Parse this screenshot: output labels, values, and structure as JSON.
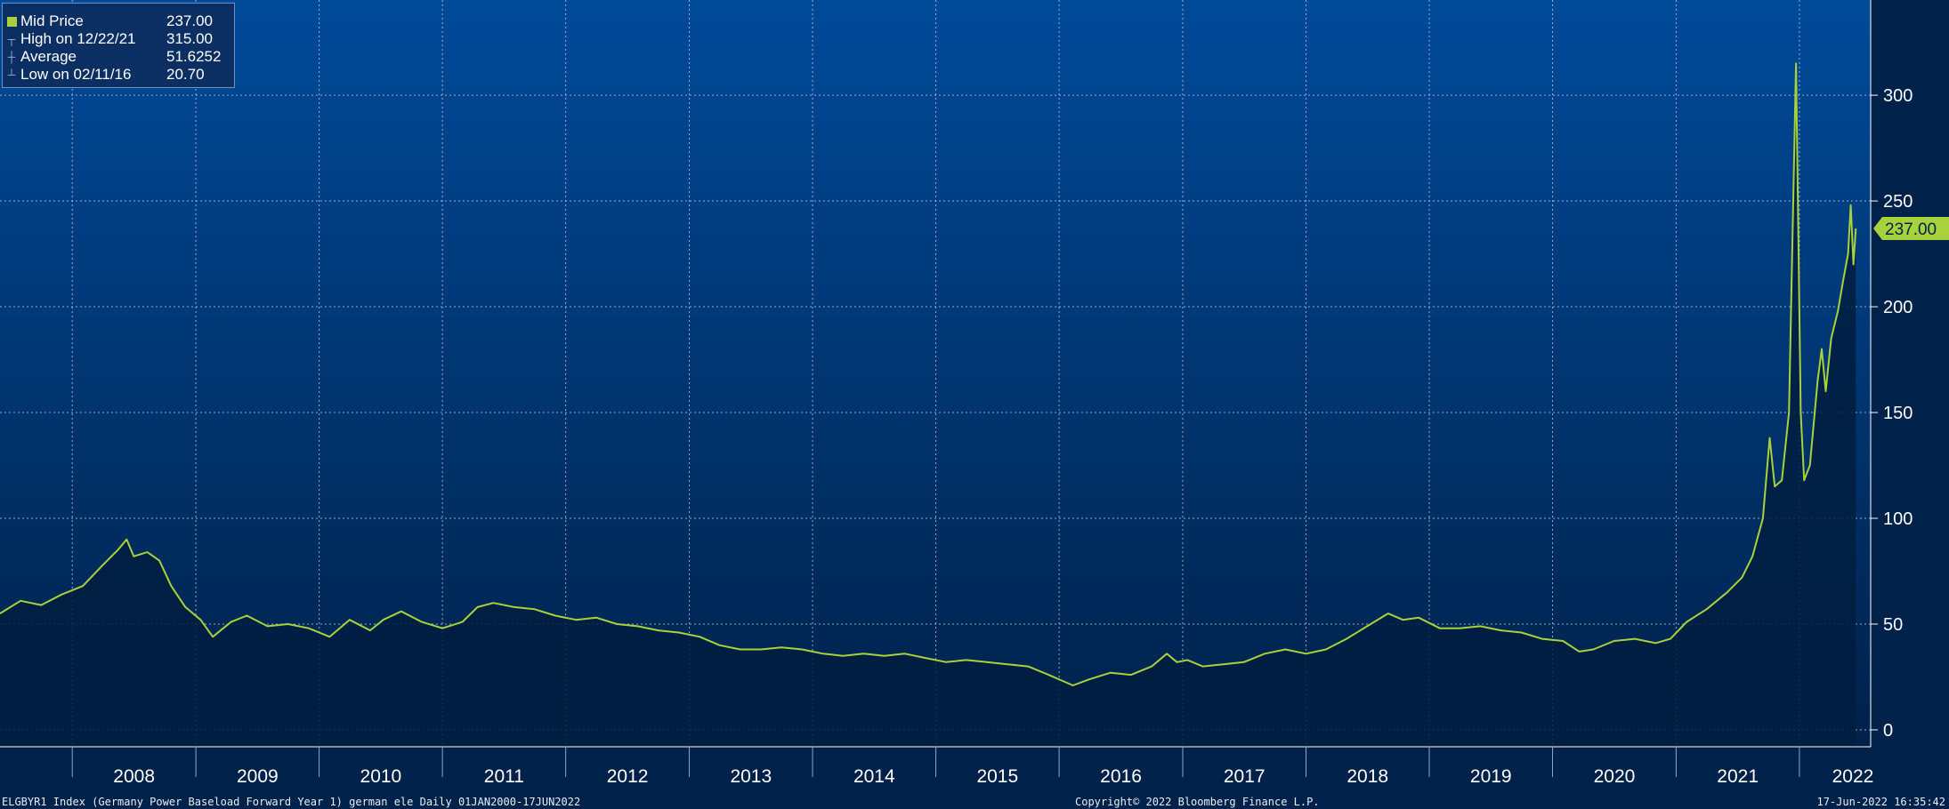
{
  "legend": {
    "rows": [
      {
        "label": "Mid Price",
        "value": "237.00",
        "icon": "square-icon"
      },
      {
        "label": "High on 12/22/21",
        "value": "315.00",
        "icon": "high-marker-icon"
      },
      {
        "label": "Average",
        "value": "51.6252",
        "icon": "average-marker-icon"
      },
      {
        "label": "Low on 02/11/16",
        "value": "20.70",
        "icon": "low-marker-icon"
      }
    ]
  },
  "footer": {
    "ticker": "ELGBYR1 Index (Germany Power Baseload Forward Year 1) german ele  Daily 01JAN2000-17JUN2022",
    "copyright": "Copyright© 2022 Bloomberg Finance L.P.",
    "timestamp": "17-Jun-2022 16:35:42"
  },
  "colors": {
    "line": "#a8d23b",
    "background_top": "#004a99",
    "background_bottom": "#00214a",
    "fill": "#001d3f"
  },
  "chart_data": {
    "type": "area",
    "title": "",
    "xlabel": "",
    "ylabel": "",
    "last_value_label": "237.00",
    "x_tick_labels": [
      "2008",
      "2009",
      "2010",
      "2011",
      "2012",
      "2013",
      "2014",
      "2015",
      "2016",
      "2017",
      "2018",
      "2019",
      "2020",
      "2021",
      "2022"
    ],
    "y_ticks": [
      0,
      50,
      100,
      150,
      200,
      250,
      300
    ],
    "xlim": [
      "2007-06-01",
      "2022-07-31"
    ],
    "ylim": [
      -8,
      345
    ],
    "grid": true,
    "legend_position": "top-left",
    "series": [
      {
        "name": "Mid Price",
        "points": [
          [
            "2007-06-01",
            55
          ],
          [
            "2007-08-01",
            61
          ],
          [
            "2007-10-01",
            59
          ],
          [
            "2007-12-01",
            64
          ],
          [
            "2008-02-01",
            68
          ],
          [
            "2008-04-01",
            78
          ],
          [
            "2008-05-15",
            85
          ],
          [
            "2008-06-10",
            90
          ],
          [
            "2008-07-01",
            82
          ],
          [
            "2008-08-10",
            84
          ],
          [
            "2008-09-15",
            80
          ],
          [
            "2008-10-20",
            68
          ],
          [
            "2008-12-01",
            58
          ],
          [
            "2009-01-15",
            52
          ],
          [
            "2009-02-20",
            44
          ],
          [
            "2009-04-15",
            51
          ],
          [
            "2009-06-01",
            54
          ],
          [
            "2009-08-01",
            49
          ],
          [
            "2009-10-01",
            50
          ],
          [
            "2009-12-01",
            48
          ],
          [
            "2010-02-01",
            44
          ],
          [
            "2010-04-01",
            52
          ],
          [
            "2010-06-01",
            47
          ],
          [
            "2010-07-10",
            52
          ],
          [
            "2010-09-01",
            56
          ],
          [
            "2010-11-01",
            51
          ],
          [
            "2011-01-01",
            48
          ],
          [
            "2011-03-01",
            51
          ],
          [
            "2011-04-15",
            58
          ],
          [
            "2011-06-01",
            60
          ],
          [
            "2011-08-01",
            58
          ],
          [
            "2011-10-01",
            57
          ],
          [
            "2011-12-01",
            54
          ],
          [
            "2012-02-01",
            52
          ],
          [
            "2012-04-01",
            53
          ],
          [
            "2012-06-01",
            50
          ],
          [
            "2012-08-01",
            49
          ],
          [
            "2012-10-01",
            47
          ],
          [
            "2012-12-01",
            46
          ],
          [
            "2013-02-01",
            44
          ],
          [
            "2013-04-01",
            40
          ],
          [
            "2013-06-01",
            38
          ],
          [
            "2013-08-01",
            38
          ],
          [
            "2013-10-01",
            39
          ],
          [
            "2013-12-01",
            38
          ],
          [
            "2014-02-01",
            36
          ],
          [
            "2014-04-01",
            35
          ],
          [
            "2014-06-01",
            36
          ],
          [
            "2014-08-01",
            35
          ],
          [
            "2014-10-01",
            36
          ],
          [
            "2014-12-01",
            34
          ],
          [
            "2015-02-01",
            32
          ],
          [
            "2015-04-01",
            33
          ],
          [
            "2015-06-01",
            32
          ],
          [
            "2015-08-01",
            31
          ],
          [
            "2015-10-01",
            30
          ],
          [
            "2015-12-01",
            26
          ],
          [
            "2016-02-11",
            21
          ],
          [
            "2016-04-01",
            24
          ],
          [
            "2016-06-01",
            27
          ],
          [
            "2016-08-01",
            26
          ],
          [
            "2016-10-01",
            30
          ],
          [
            "2016-11-15",
            36
          ],
          [
            "2016-12-15",
            32
          ],
          [
            "2017-01-15",
            33
          ],
          [
            "2017-03-01",
            30
          ],
          [
            "2017-05-01",
            31
          ],
          [
            "2017-07-01",
            32
          ],
          [
            "2017-09-01",
            36
          ],
          [
            "2017-11-01",
            38
          ],
          [
            "2018-01-01",
            36
          ],
          [
            "2018-03-01",
            38
          ],
          [
            "2018-05-01",
            43
          ],
          [
            "2018-07-01",
            49
          ],
          [
            "2018-09-01",
            55
          ],
          [
            "2018-10-15",
            52
          ],
          [
            "2018-12-01",
            53
          ],
          [
            "2019-02-01",
            48
          ],
          [
            "2019-04-01",
            48
          ],
          [
            "2019-06-01",
            49
          ],
          [
            "2019-08-01",
            47
          ],
          [
            "2019-10-01",
            46
          ],
          [
            "2019-12-01",
            43
          ],
          [
            "2020-02-01",
            42
          ],
          [
            "2020-03-20",
            37
          ],
          [
            "2020-05-01",
            38
          ],
          [
            "2020-07-01",
            42
          ],
          [
            "2020-09-01",
            43
          ],
          [
            "2020-11-01",
            41
          ],
          [
            "2020-12-15",
            43
          ],
          [
            "2021-02-01",
            51
          ],
          [
            "2021-04-01",
            57
          ],
          [
            "2021-06-01",
            65
          ],
          [
            "2021-07-15",
            72
          ],
          [
            "2021-08-15",
            82
          ],
          [
            "2021-09-15",
            100
          ],
          [
            "2021-10-05",
            138
          ],
          [
            "2021-10-20",
            115
          ],
          [
            "2021-11-10",
            118
          ],
          [
            "2021-12-01",
            150
          ],
          [
            "2021-12-22",
            315
          ],
          [
            "2022-01-05",
            150
          ],
          [
            "2022-01-15",
            118
          ],
          [
            "2022-02-01",
            125
          ],
          [
            "2022-02-24",
            165
          ],
          [
            "2022-03-08",
            180
          ],
          [
            "2022-03-20",
            160
          ],
          [
            "2022-04-05",
            185
          ],
          [
            "2022-04-25",
            198
          ],
          [
            "2022-05-10",
            212
          ],
          [
            "2022-05-25",
            225
          ],
          [
            "2022-06-02",
            248
          ],
          [
            "2022-06-10",
            220
          ],
          [
            "2022-06-17",
            237
          ]
        ]
      }
    ]
  }
}
